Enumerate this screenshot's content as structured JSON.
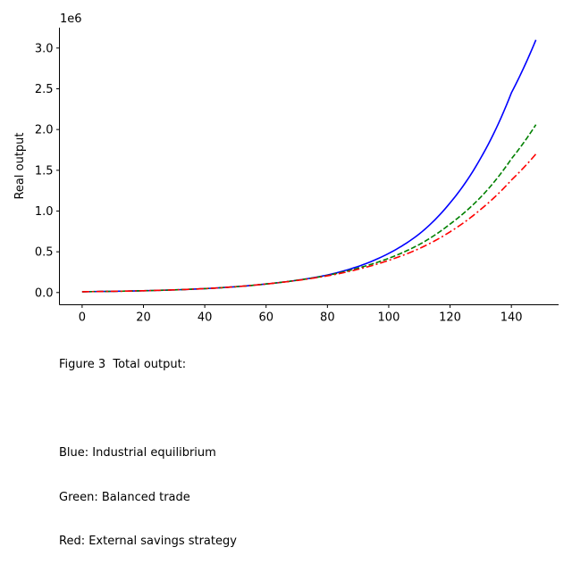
{
  "chart_data": {
    "type": "line",
    "ylabel": "Real output",
    "y_offset_label": "1e6",
    "xlim": [
      -7.4,
      155.4
    ],
    "ylim": [
      -0.15,
      3.25
    ],
    "y_unit_multiplier": 1000000,
    "x_ticks": [
      0,
      20,
      40,
      60,
      80,
      100,
      120,
      140
    ],
    "x_tick_labels": [
      "0",
      "20",
      "40",
      "60",
      "80",
      "100",
      "120",
      "140"
    ],
    "y_ticks": [
      0.0,
      0.5,
      1.0,
      1.5,
      2.0,
      2.5,
      3.0
    ],
    "y_tick_labels": [
      "0.0",
      "0.5",
      "1.0",
      "1.5",
      "2.0",
      "2.5",
      "3.0"
    ],
    "grid": false,
    "series": [
      {
        "color": "#0000ff",
        "line_style": "solid",
        "x": [
          0,
          20,
          40,
          60,
          70,
          80,
          90,
          100,
          110,
          120,
          130,
          140,
          148
        ],
        "values": [
          0.01,
          0.022,
          0.048,
          0.105,
          0.15,
          0.215,
          0.32,
          0.48,
          0.72,
          1.1,
          1.65,
          2.45,
          3.1
        ]
      },
      {
        "color": "#008000",
        "line_style": "dashed",
        "x": [
          0,
          20,
          40,
          60,
          70,
          80,
          90,
          100,
          110,
          120,
          130,
          140,
          148
        ],
        "values": [
          0.01,
          0.022,
          0.048,
          0.105,
          0.15,
          0.21,
          0.3,
          0.42,
          0.59,
          0.84,
          1.17,
          1.64,
          2.06
        ]
      },
      {
        "color": "#ff0000",
        "line_style": "dashdot",
        "x": [
          0,
          20,
          40,
          60,
          70,
          80,
          90,
          100,
          110,
          120,
          130,
          140,
          148
        ],
        "values": [
          0.01,
          0.022,
          0.048,
          0.105,
          0.148,
          0.205,
          0.285,
          0.395,
          0.54,
          0.745,
          1.02,
          1.38,
          1.7
        ]
      }
    ]
  },
  "caption": {
    "lines": [
      "Figure 3  Total output:",
      "",
      "Blue: Industrial equilibrium",
      "Green: Balanced trade",
      "Red: External savings strategy"
    ]
  }
}
